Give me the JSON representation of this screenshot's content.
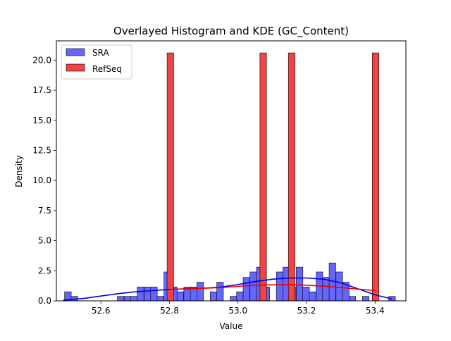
{
  "chart_data": {
    "type": "histogram",
    "title": "Overlayed Histogram and KDE (GC_Content)",
    "xlabel": "Value",
    "ylabel": "Density",
    "xlim": [
      52.47,
      53.49
    ],
    "ylim": [
      0,
      21.6
    ],
    "xticks": [
      "52.6",
      "52.8",
      "53.0",
      "53.2",
      "53.4"
    ],
    "yticks": [
      "0.0",
      "2.5",
      "5.0",
      "7.5",
      "10.0",
      "12.5",
      "15.0",
      "17.5",
      "20.0"
    ],
    "legend_position": "upper-left",
    "bin_width": 0.0193,
    "series": [
      {
        "name": "SRA",
        "color": "#6666ff",
        "edge_color": "#000000",
        "kde_color": "#0000dd",
        "bins": [
          {
            "x0": 52.494,
            "h": 0.75
          },
          {
            "x0": 52.513,
            "h": 0.37
          },
          {
            "x0": 52.648,
            "h": 0.37
          },
          {
            "x0": 52.668,
            "h": 0.37
          },
          {
            "x0": 52.687,
            "h": 0.37
          },
          {
            "x0": 52.706,
            "h": 1.15
          },
          {
            "x0": 52.726,
            "h": 1.15
          },
          {
            "x0": 52.745,
            "h": 1.15
          },
          {
            "x0": 52.764,
            "h": 0.37
          },
          {
            "x0": 52.784,
            "h": 2.4
          },
          {
            "x0": 52.803,
            "h": 1.15
          },
          {
            "x0": 52.822,
            "h": 0.75
          },
          {
            "x0": 52.842,
            "h": 1.15
          },
          {
            "x0": 52.861,
            "h": 1.15
          },
          {
            "x0": 52.88,
            "h": 1.55
          },
          {
            "x0": 52.919,
            "h": 0.75
          },
          {
            "x0": 52.938,
            "h": 1.55
          },
          {
            "x0": 52.977,
            "h": 0.37
          },
          {
            "x0": 52.996,
            "h": 0.75
          },
          {
            "x0": 53.015,
            "h": 1.95
          },
          {
            "x0": 53.035,
            "h": 2.4
          },
          {
            "x0": 53.054,
            "h": 2.8
          },
          {
            "x0": 53.073,
            "h": 1.15
          },
          {
            "x0": 53.112,
            "h": 2.4
          },
          {
            "x0": 53.131,
            "h": 2.8
          },
          {
            "x0": 53.15,
            "h": 1.15
          },
          {
            "x0": 53.17,
            "h": 2.8
          },
          {
            "x0": 53.189,
            "h": 1.15
          },
          {
            "x0": 53.208,
            "h": 0.75
          },
          {
            "x0": 53.228,
            "h": 2.4
          },
          {
            "x0": 53.247,
            "h": 1.95
          },
          {
            "x0": 53.266,
            "h": 3.15
          },
          {
            "x0": 53.286,
            "h": 2.4
          },
          {
            "x0": 53.305,
            "h": 1.55
          },
          {
            "x0": 53.324,
            "h": 0.37
          },
          {
            "x0": 53.363,
            "h": 0.37
          },
          {
            "x0": 53.44,
            "h": 0.37
          }
        ],
        "kde": [
          {
            "x": 52.49,
            "y": 0.05
          },
          {
            "x": 52.55,
            "y": 0.2
          },
          {
            "x": 52.6,
            "y": 0.4
          },
          {
            "x": 52.65,
            "y": 0.6
          },
          {
            "x": 52.7,
            "y": 0.75
          },
          {
            "x": 52.75,
            "y": 0.85
          },
          {
            "x": 52.8,
            "y": 0.95
          },
          {
            "x": 52.85,
            "y": 1.0
          },
          {
            "x": 52.9,
            "y": 1.05
          },
          {
            "x": 52.95,
            "y": 1.15
          },
          {
            "x": 53.0,
            "y": 1.35
          },
          {
            "x": 53.05,
            "y": 1.6
          },
          {
            "x": 53.1,
            "y": 1.8
          },
          {
            "x": 53.15,
            "y": 1.9
          },
          {
            "x": 53.2,
            "y": 1.9
          },
          {
            "x": 53.25,
            "y": 1.8
          },
          {
            "x": 53.3,
            "y": 1.5
          },
          {
            "x": 53.35,
            "y": 1.0
          },
          {
            "x": 53.4,
            "y": 0.5
          },
          {
            "x": 53.45,
            "y": 0.15
          }
        ]
      },
      {
        "name": "RefSeq",
        "color": "#ee4444",
        "edge_color": "#000000",
        "kde_color": "#ee0000",
        "bins": [
          {
            "x0": 52.793,
            "h": 20.6
          },
          {
            "x0": 53.064,
            "h": 20.6
          },
          {
            "x0": 53.147,
            "h": 20.6
          },
          {
            "x0": 53.392,
            "h": 20.6
          }
        ],
        "kde": [
          {
            "x": 52.8,
            "y": 0.95
          },
          {
            "x": 52.85,
            "y": 1.0
          },
          {
            "x": 52.9,
            "y": 1.05
          },
          {
            "x": 52.95,
            "y": 1.1
          },
          {
            "x": 53.0,
            "y": 1.2
          },
          {
            "x": 53.05,
            "y": 1.3
          },
          {
            "x": 53.1,
            "y": 1.33
          },
          {
            "x": 53.15,
            "y": 1.35
          },
          {
            "x": 53.2,
            "y": 1.3
          },
          {
            "x": 53.25,
            "y": 1.22
          },
          {
            "x": 53.3,
            "y": 1.1
          },
          {
            "x": 53.35,
            "y": 0.98
          },
          {
            "x": 53.4,
            "y": 0.85
          }
        ]
      }
    ]
  }
}
